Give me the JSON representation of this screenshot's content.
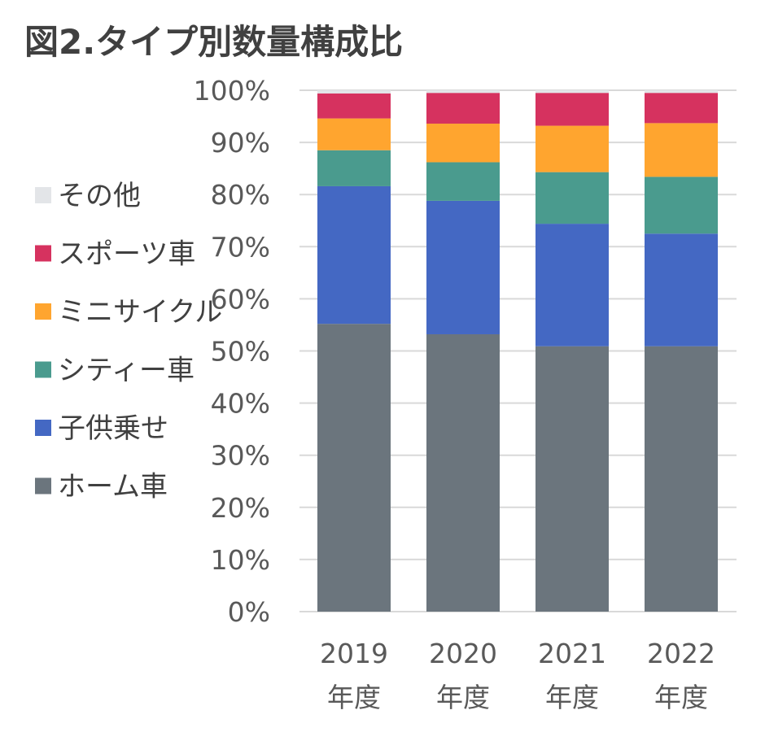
{
  "title": "図2.タイプ別数量構成比",
  "chart_data": {
    "type": "bar",
    "stacked": true,
    "categories": [
      [
        "2019",
        "年度"
      ],
      [
        "2020",
        "年度"
      ],
      [
        "2021",
        "年度"
      ],
      [
        "2022",
        "年度"
      ]
    ],
    "ylim": [
      0,
      100
    ],
    "yticks": [
      "0%",
      "10%",
      "20%",
      "30%",
      "40%",
      "50%",
      "60%",
      "70%",
      "80%",
      "90%",
      "100%"
    ],
    "grid": true,
    "legend_position": "left",
    "series": [
      {
        "name": "ホーム車",
        "color": "#6b757d",
        "values": [
          55.2,
          53.2,
          50.9,
          50.9
        ]
      },
      {
        "name": "子供乗せ",
        "color": "#4468c3",
        "values": [
          26.4,
          25.6,
          23.5,
          21.6
        ]
      },
      {
        "name": "シティー車",
        "color": "#4a9b8e",
        "values": [
          6.9,
          7.4,
          9.9,
          10.9
        ]
      },
      {
        "name": "ミニサイクル",
        "color": "#ffa52f",
        "values": [
          6.1,
          7.4,
          8.9,
          10.3
        ]
      },
      {
        "name": "スポーツ車",
        "color": "#d6325f",
        "values": [
          4.8,
          5.9,
          6.3,
          5.8
        ]
      },
      {
        "name": "その他",
        "color": "#e3e5e8",
        "values": [
          0.6,
          0.5,
          0.5,
          0.5
        ]
      }
    ]
  }
}
